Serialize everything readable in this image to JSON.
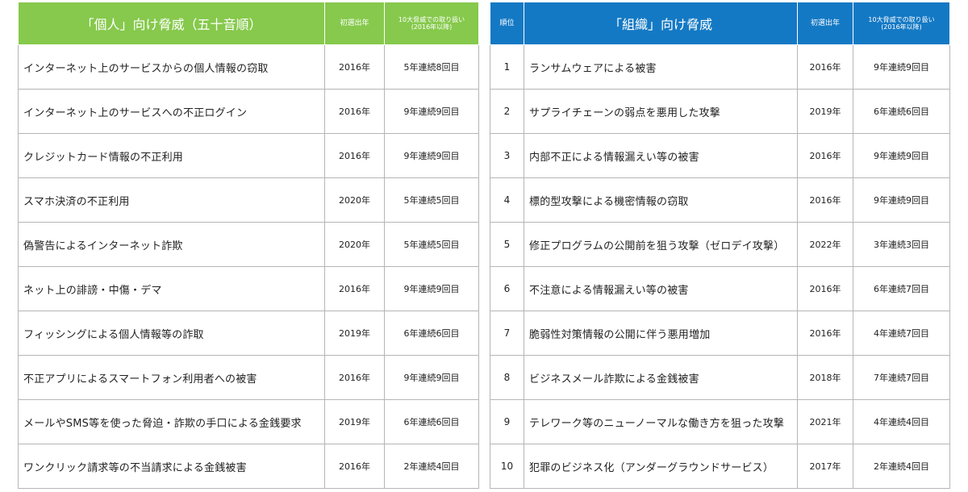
{
  "left": {
    "header": {
      "title": "「個人」向け脅威（五十音順）",
      "first_year": "初選出年",
      "count_line1": "10大脅威での取り扱い",
      "count_line2": "(2016年以降)"
    },
    "rows": [
      {
        "name": "インターネット上のサービスからの個人情報の窃取",
        "year": "2016年",
        "streak": "5年連続8回目"
      },
      {
        "name": "インターネット上のサービスへの不正ログイン",
        "year": "2016年",
        "streak": "9年連続9回目"
      },
      {
        "name": "クレジットカード情報の不正利用",
        "year": "2016年",
        "streak": "9年連続9回目"
      },
      {
        "name": "スマホ決済の不正利用",
        "year": "2020年",
        "streak": "5年連続5回目"
      },
      {
        "name": "偽警告によるインターネット詐欺",
        "year": "2020年",
        "streak": "5年連続5回目"
      },
      {
        "name": "ネット上の誹謗・中傷・デマ",
        "year": "2016年",
        "streak": "9年連続9回目"
      },
      {
        "name": "フィッシングによる個人情報等の詐取",
        "year": "2019年",
        "streak": "6年連続6回目"
      },
      {
        "name": "不正アプリによるスマートフォン利用者への被害",
        "year": "2016年",
        "streak": "9年連続9回目"
      },
      {
        "name": "メールやSMS等を使った脅迫・詐欺の手口による金銭要求",
        "year": "2019年",
        "streak": "6年連続6回目"
      },
      {
        "name": "ワンクリック請求等の不当請求による金銭被害",
        "year": "2016年",
        "streak": "2年連続4回目"
      }
    ]
  },
  "right": {
    "header": {
      "rank": "順位",
      "title": "「組織」向け脅威",
      "first_year": "初選出年",
      "count_line1": "10大脅威での取り扱い",
      "count_line2": "(2016年以降)"
    },
    "rows": [
      {
        "rank": "1",
        "name": "ランサムウェアによる被害",
        "year": "2016年",
        "streak": "9年連続9回目"
      },
      {
        "rank": "2",
        "name": "サプライチェーンの弱点を悪用した攻撃",
        "year": "2019年",
        "streak": "6年連続6回目"
      },
      {
        "rank": "3",
        "name": "内部不正による情報漏えい等の被害",
        "year": "2016年",
        "streak": "9年連続9回目"
      },
      {
        "rank": "4",
        "name": "標的型攻撃による機密情報の窃取",
        "year": "2016年",
        "streak": "9年連続9回目"
      },
      {
        "rank": "5",
        "name": "修正プログラムの公開前を狙う攻撃（ゼロデイ攻撃）",
        "year": "2022年",
        "streak": "3年連続3回目"
      },
      {
        "rank": "6",
        "name": "不注意による情報漏えい等の被害",
        "year": "2016年",
        "streak": "6年連続7回目"
      },
      {
        "rank": "7",
        "name": "脆弱性対策情報の公開に伴う悪用増加",
        "year": "2016年",
        "streak": "4年連続7回目"
      },
      {
        "rank": "8",
        "name": "ビジネスメール詐欺による金銭被害",
        "year": "2018年",
        "streak": "7年連続7回目"
      },
      {
        "rank": "9",
        "name": "テレワーク等のニューノーマルな働き方を狙った攻撃",
        "year": "2021年",
        "streak": "4年連続4回目"
      },
      {
        "rank": "10",
        "name": "犯罪のビジネス化（アンダーグラウンドサービス）",
        "year": "2017年",
        "streak": "2年連続4回目"
      }
    ]
  }
}
